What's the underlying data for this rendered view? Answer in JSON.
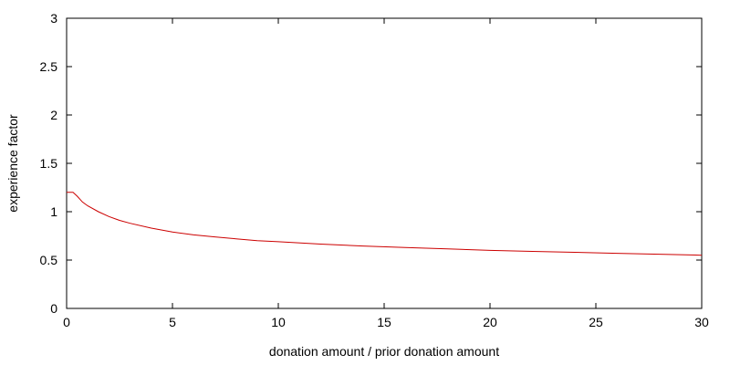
{
  "chart_data": {
    "type": "line",
    "xlabel": "donation amount / prior donation amount",
    "ylabel": "experience factor",
    "xlim": [
      0,
      30
    ],
    "ylim": [
      0,
      3
    ],
    "x_ticks": [
      0,
      5,
      10,
      15,
      20,
      25,
      30
    ],
    "y_ticks": [
      0,
      0.5,
      1,
      1.5,
      2,
      2.5,
      3
    ],
    "x_tick_labels": [
      "0",
      "5",
      "10",
      "15",
      "20",
      "25",
      "30"
    ],
    "y_tick_labels": [
      "0",
      "0.5",
      "1",
      "1.5",
      "2",
      "2.5",
      "3"
    ],
    "grid": false,
    "legend": "none",
    "series": [
      {
        "color": "#cc0000",
        "x": [
          0,
          0.3,
          0.5,
          0.75,
          1,
          1.5,
          2,
          2.5,
          3,
          4,
          5,
          6,
          7,
          8,
          9,
          10,
          12,
          14,
          16,
          18,
          20,
          22,
          24,
          26,
          28,
          30
        ],
        "y": [
          1.2,
          1.2,
          1.16,
          1.1,
          1.06,
          1.0,
          0.95,
          0.91,
          0.88,
          0.83,
          0.79,
          0.76,
          0.74,
          0.72,
          0.7,
          0.69,
          0.665,
          0.645,
          0.63,
          0.615,
          0.6,
          0.59,
          0.58,
          0.57,
          0.56,
          0.55
        ]
      }
    ]
  }
}
